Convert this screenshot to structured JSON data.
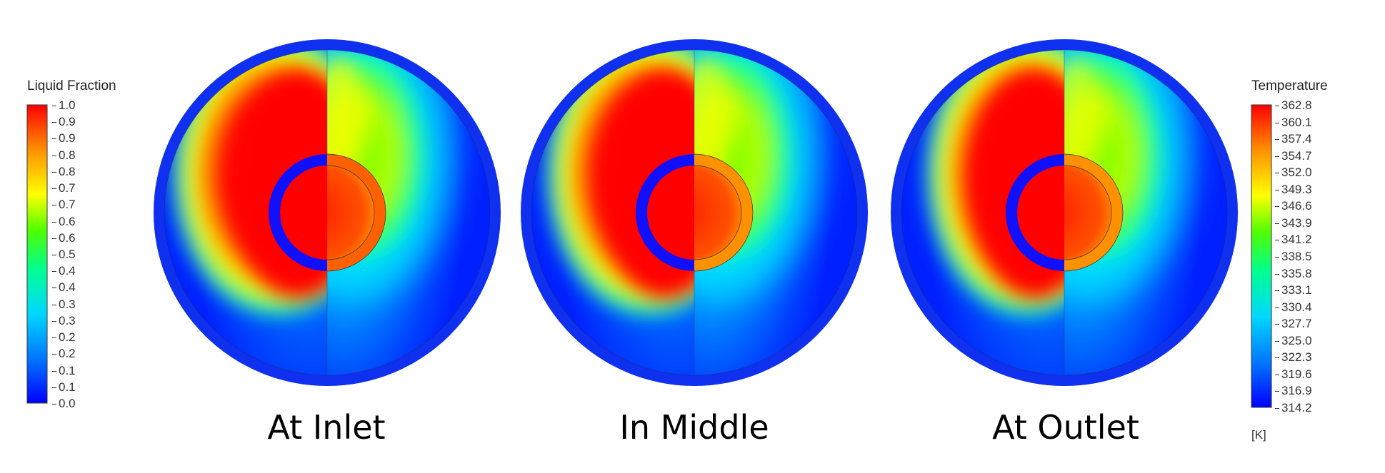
{
  "liquid_fraction_legend": {
    "title": "Liquid Fraction",
    "ticks": [
      "1.0",
      "0.9",
      "0.9",
      "0.8",
      "0.8",
      "0.7",
      "0.7",
      "0.6",
      "0.6",
      "0.5",
      "0.4",
      "0.4",
      "0.3",
      "0.3",
      "0.2",
      "0.2",
      "0.1",
      "0.1",
      "0.0"
    ],
    "min": 0.0,
    "max": 1.0
  },
  "temperature_legend": {
    "title": "Temperature",
    "ticks": [
      "362.8",
      "360.1",
      "357.4",
      "354.7",
      "352.0",
      "349.3",
      "346.6",
      "343.9",
      "341.2",
      "338.5",
      "335.8",
      "333.1",
      "330.4",
      "327.7",
      "325.0",
      "322.3",
      "319.6",
      "316.9",
      "314.2"
    ],
    "unit": "[K]",
    "min": 314.2,
    "max": 362.8
  },
  "colormap": [
    "#0000ff",
    "#0070ff",
    "#00d8ff",
    "#00ff90",
    "#50ff00",
    "#ffff00",
    "#ff9000",
    "#ff0000"
  ],
  "panels": [
    {
      "caption": "At Inlet"
    },
    {
      "caption": "In Middle"
    },
    {
      "caption": "At Outlet"
    }
  ]
}
